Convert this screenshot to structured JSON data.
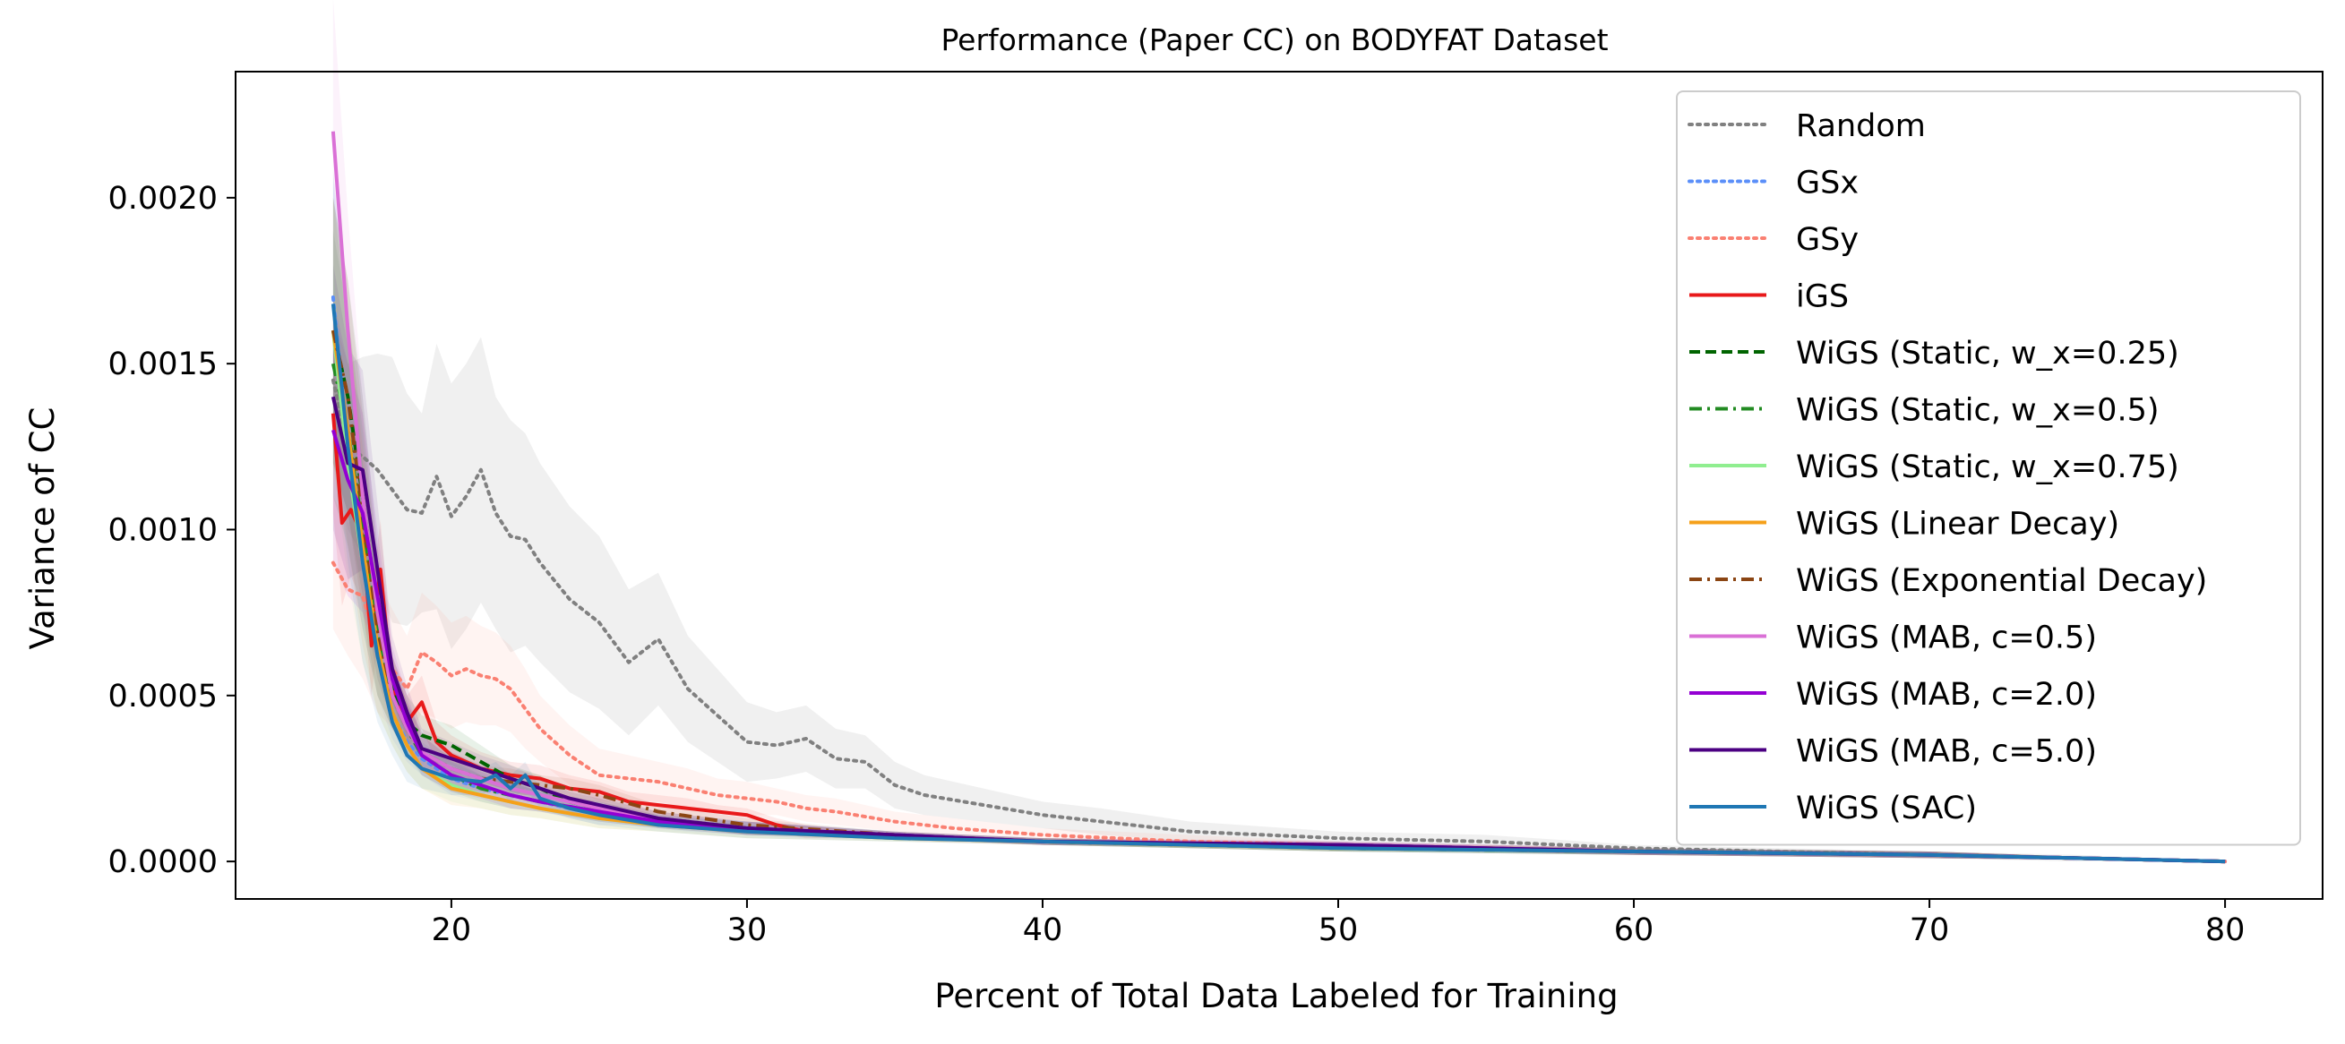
{
  "chart_data": {
    "type": "line",
    "title": "Performance (Paper CC) on BODYFAT Dataset",
    "xlabel": "Percent of Total Data Labeled for Training",
    "ylabel": "Variance of CC",
    "xlim": [
      12.7,
      83.3
    ],
    "ylim": [
      -0.000113,
      0.00238
    ],
    "xticks": [
      20,
      30,
      40,
      50,
      60,
      70,
      80
    ],
    "yticks": [
      0.0,
      0.0005,
      0.001,
      0.0015,
      0.002
    ],
    "ytick_labels": [
      "0.0000",
      "0.0005",
      "0.0010",
      "0.0015",
      "0.0020"
    ],
    "grid": false,
    "legend_position": "upper-right",
    "series": [
      {
        "name": "Random",
        "color": "#808080",
        "style": "dotted",
        "x": [
          16,
          16.5,
          17,
          17.5,
          18,
          18.5,
          19,
          19.5,
          20,
          20.5,
          21,
          21.5,
          22,
          22.5,
          23,
          24,
          25,
          26,
          27,
          28,
          29,
          30,
          31,
          32,
          33,
          34,
          35,
          36,
          38,
          40,
          42,
          45,
          50,
          55,
          60,
          65,
          70,
          75,
          80
        ],
        "y": [
          0.00145,
          0.00125,
          0.00122,
          0.00118,
          0.00112,
          0.00106,
          0.00105,
          0.00116,
          0.00104,
          0.0011,
          0.00118,
          0.00105,
          0.00098,
          0.00097,
          0.0009,
          0.00079,
          0.00072,
          0.0006,
          0.00067,
          0.00052,
          0.00044,
          0.00036,
          0.00035,
          0.00037,
          0.00031,
          0.0003,
          0.00023,
          0.0002,
          0.00017,
          0.00014,
          0.00012,
          9e-05,
          7e-05,
          6e-05,
          4e-05,
          3e-05,
          2e-05,
          1e-05,
          0.0
        ],
        "band": [
          0.0002,
          0.00025,
          0.0003,
          0.00035,
          0.0004,
          0.00035,
          0.0003,
          0.0004,
          0.0004,
          0.0004,
          0.0004,
          0.00035,
          0.00035,
          0.00032,
          0.0003,
          0.00028,
          0.00026,
          0.00022,
          0.0002,
          0.00016,
          0.00014,
          0.00012,
          0.0001,
          0.0001,
          9e-05,
          8e-05,
          7e-05,
          6e-05,
          5e-05,
          4e-05,
          4e-05,
          3e-05,
          2e-05,
          2e-05,
          1e-05,
          1e-05,
          1e-05,
          1e-05,
          0.0
        ]
      },
      {
        "name": "GSx",
        "color": "#5b8ff9",
        "style": "dotted",
        "x": [
          16,
          16.5,
          17,
          17.5,
          18,
          18.5,
          19,
          20,
          21,
          22,
          23,
          24,
          25,
          26,
          28,
          30,
          32,
          35,
          40,
          50,
          60,
          70,
          80
        ],
        "y": [
          0.0017,
          0.00125,
          0.0009,
          0.00062,
          0.00045,
          0.00036,
          0.00031,
          0.00025,
          0.00022,
          0.0002,
          0.00018,
          0.00016,
          0.00014,
          0.00013,
          0.00011,
          0.0001,
          9e-05,
          8e-05,
          6e-05,
          4e-05,
          3e-05,
          2e-05,
          0.0
        ],
        "band": [
          0.00035,
          0.0003,
          0.0002,
          0.00012,
          8e-05,
          6e-05,
          5e-05,
          5e-05,
          4e-05,
          4e-05,
          3e-05,
          3e-05,
          3e-05,
          2e-05,
          2e-05,
          2e-05,
          2e-05,
          1e-05,
          1e-05,
          1e-05,
          1e-05,
          1e-05,
          0.0
        ]
      },
      {
        "name": "GSy",
        "color": "#fa8072",
        "style": "dotted",
        "x": [
          16,
          16.5,
          17,
          17.5,
          18,
          18.5,
          19,
          19.5,
          20,
          20.5,
          21,
          21.5,
          22,
          22.5,
          23,
          24,
          25,
          26,
          27,
          28,
          29,
          30,
          31,
          32,
          33,
          35,
          37,
          40,
          45,
          50,
          60,
          70,
          80
        ],
        "y": [
          0.0009,
          0.00082,
          0.0008,
          0.00065,
          0.00058,
          0.00052,
          0.00063,
          0.0006,
          0.00056,
          0.00058,
          0.00056,
          0.00055,
          0.00052,
          0.00046,
          0.0004,
          0.00032,
          0.00026,
          0.00025,
          0.00024,
          0.00022,
          0.0002,
          0.00019,
          0.00018,
          0.00016,
          0.00015,
          0.00012,
          0.0001,
          8e-05,
          6e-05,
          5e-05,
          3e-05,
          2e-05,
          0.0
        ],
        "band": [
          0.0002,
          0.0002,
          0.00025,
          0.0002,
          0.00018,
          0.00016,
          0.00018,
          0.00017,
          0.00016,
          0.00016,
          0.00015,
          0.00014,
          0.00013,
          0.00012,
          0.0001,
          9e-05,
          8e-05,
          7e-05,
          6e-05,
          6e-05,
          5e-05,
          5e-05,
          4e-05,
          4e-05,
          4e-05,
          3e-05,
          3e-05,
          2e-05,
          2e-05,
          1e-05,
          1e-05,
          1e-05,
          0.0
        ]
      },
      {
        "name": "iGS",
        "color": "#e8191a",
        "style": "solid",
        "x": [
          16,
          16.3,
          16.6,
          17,
          17.3,
          17.6,
          18,
          18.5,
          19,
          19.5,
          20,
          21,
          22,
          23,
          24,
          25,
          26,
          27,
          28,
          29,
          30,
          31,
          32,
          34,
          36,
          40,
          45,
          50,
          60,
          70,
          80
        ],
        "y": [
          0.00135,
          0.00102,
          0.00106,
          0.00098,
          0.00065,
          0.00088,
          0.00052,
          0.00042,
          0.00048,
          0.00036,
          0.00032,
          0.00028,
          0.00026,
          0.00025,
          0.00022,
          0.00021,
          0.00018,
          0.00017,
          0.00016,
          0.00015,
          0.00014,
          0.00011,
          9e-05,
          8e-05,
          7e-05,
          6e-05,
          5e-05,
          4e-05,
          3e-05,
          2e-05,
          0.0
        ],
        "band": [
          0.0003,
          0.00025,
          0.0002,
          0.0002,
          0.00015,
          0.00015,
          0.0001,
          8e-05,
          8e-05,
          6e-05,
          6e-05,
          5e-05,
          4e-05,
          4e-05,
          4e-05,
          3e-05,
          3e-05,
          3e-05,
          3e-05,
          2e-05,
          2e-05,
          2e-05,
          2e-05,
          1e-05,
          1e-05,
          1e-05,
          1e-05,
          1e-05,
          1e-05,
          1e-05,
          0.0
        ]
      },
      {
        "name": "WiGS (Static, w_x=0.25)",
        "color": "#006400",
        "style": "dashed",
        "x": [
          16,
          16.5,
          17,
          17.5,
          18,
          18.5,
          19,
          20,
          21,
          22,
          23,
          24,
          25,
          27,
          30,
          35,
          40,
          50,
          60,
          70,
          80
        ],
        "y": [
          0.0016,
          0.0014,
          0.0011,
          0.00075,
          0.00052,
          0.00042,
          0.00038,
          0.00035,
          0.0003,
          0.00025,
          0.00022,
          0.00018,
          0.00016,
          0.00013,
          0.0001,
          8e-05,
          6e-05,
          4e-05,
          3e-05,
          2e-05,
          0.0
        ],
        "band": [
          0.0004,
          0.00035,
          0.0003,
          0.0002,
          0.0001,
          8e-05,
          6e-05,
          6e-05,
          5e-05,
          4e-05,
          4e-05,
          3e-05,
          3e-05,
          2e-05,
          2e-05,
          1e-05,
          1e-05,
          1e-05,
          1e-05,
          1e-05,
          0.0
        ]
      },
      {
        "name": "WiGS (Static, w_x=0.5)",
        "color": "#228b22",
        "style": "dashdot",
        "x": [
          16,
          16.5,
          17,
          17.5,
          18,
          18.5,
          19,
          20,
          21,
          22,
          23,
          25,
          27,
          30,
          35,
          40,
          50,
          60,
          70,
          80
        ],
        "y": [
          0.0015,
          0.0013,
          0.001,
          0.0007,
          0.0005,
          0.0004,
          0.00032,
          0.00026,
          0.00022,
          0.0002,
          0.00018,
          0.00015,
          0.00012,
          0.0001,
          8e-05,
          6e-05,
          4e-05,
          3e-05,
          2e-05,
          0.0
        ],
        "band": [
          0.0004,
          0.00035,
          0.0003,
          0.0002,
          0.0001,
          8e-05,
          6e-05,
          5e-05,
          4e-05,
          4e-05,
          3e-05,
          3e-05,
          2e-05,
          2e-05,
          1e-05,
          1e-05,
          1e-05,
          1e-05,
          1e-05,
          0.0
        ]
      },
      {
        "name": "WiGS (Static, w_x=0.75)",
        "color": "#90ee90",
        "style": "solid",
        "x": [
          16,
          16.5,
          17,
          17.5,
          18,
          18.5,
          19,
          20,
          21,
          22,
          23,
          25,
          27,
          30,
          35,
          40,
          50,
          60,
          70,
          80
        ],
        "y": [
          0.0016,
          0.0012,
          0.0009,
          0.00065,
          0.00045,
          0.00035,
          0.00028,
          0.00023,
          0.0002,
          0.00018,
          0.00016,
          0.00013,
          0.00011,
          9e-05,
          7e-05,
          6e-05,
          4e-05,
          3e-05,
          2e-05,
          0.0
        ],
        "band": [
          0.0004,
          0.00035,
          0.0003,
          0.0002,
          0.0001,
          8e-05,
          6e-05,
          5e-05,
          4e-05,
          4e-05,
          3e-05,
          3e-05,
          2e-05,
          2e-05,
          1e-05,
          1e-05,
          1e-05,
          1e-05,
          1e-05,
          0.0
        ]
      },
      {
        "name": "WiGS (Linear Decay)",
        "color": "#f5a01a",
        "style": "solid",
        "x": [
          16,
          16.5,
          17,
          17.5,
          18,
          18.5,
          19,
          20,
          21,
          22,
          23,
          25,
          27,
          30,
          35,
          40,
          50,
          55,
          60,
          70,
          80
        ],
        "y": [
          0.0016,
          0.0013,
          0.00095,
          0.00065,
          0.00045,
          0.00035,
          0.00028,
          0.00022,
          0.0002,
          0.00018,
          0.00016,
          0.00013,
          0.00011,
          9e-05,
          7e-05,
          6e-05,
          4e-05,
          4e-05,
          3e-05,
          2e-05,
          0.0
        ],
        "band": [
          0.0004,
          0.00035,
          0.0003,
          0.0002,
          0.0001,
          8e-05,
          6e-05,
          5e-05,
          4e-05,
          4e-05,
          3e-05,
          3e-05,
          2e-05,
          2e-05,
          1e-05,
          1e-05,
          1e-05,
          1e-05,
          1e-05,
          1e-05,
          0.0
        ]
      },
      {
        "name": "WiGS (Exponential Decay)",
        "color": "#8b4513",
        "style": "dashdot",
        "x": [
          16,
          16.5,
          17,
          17.5,
          18,
          18.5,
          19,
          20,
          21,
          22,
          23,
          24,
          25,
          27,
          30,
          35,
          40,
          50,
          60,
          70,
          80
        ],
        "y": [
          0.0016,
          0.0014,
          0.00105,
          0.0007,
          0.0005,
          0.0004,
          0.00033,
          0.00028,
          0.00025,
          0.00024,
          0.00023,
          0.00022,
          0.0002,
          0.00015,
          0.00011,
          8e-05,
          6e-05,
          5e-05,
          3e-05,
          2e-05,
          0.0
        ],
        "band": [
          0.0004,
          0.00035,
          0.0003,
          0.0002,
          0.0001,
          8e-05,
          6e-05,
          5e-05,
          4e-05,
          4e-05,
          3e-05,
          3e-05,
          3e-05,
          2e-05,
          2e-05,
          1e-05,
          1e-05,
          1e-05,
          1e-05,
          1e-05,
          0.0
        ]
      },
      {
        "name": "WiGS (MAB, c=0.5)",
        "color": "#da70d6",
        "style": "solid",
        "x": [
          16,
          16.5,
          17,
          17.5,
          18,
          18.5,
          19,
          20,
          21,
          22,
          23,
          25,
          27,
          30,
          35,
          40,
          50,
          60,
          70,
          80
        ],
        "y": [
          0.0022,
          0.0016,
          0.0011,
          0.00075,
          0.0005,
          0.0004,
          0.00033,
          0.00028,
          0.00025,
          0.00022,
          0.0002,
          0.00016,
          0.00013,
          0.0001,
          8e-05,
          6e-05,
          5e-05,
          3e-05,
          2e-05,
          0.0
        ],
        "band": [
          0.0004,
          0.00035,
          0.0003,
          0.0002,
          0.0001,
          8e-05,
          6e-05,
          5e-05,
          4e-05,
          4e-05,
          3e-05,
          3e-05,
          2e-05,
          2e-05,
          1e-05,
          1e-05,
          1e-05,
          1e-05,
          1e-05,
          0.0
        ]
      },
      {
        "name": "WiGS (MAB, c=2.0)",
        "color": "#9400d3",
        "style": "solid",
        "x": [
          16,
          16.5,
          17,
          17.5,
          18,
          18.5,
          19,
          20,
          21,
          22,
          23,
          25,
          27,
          30,
          35,
          40,
          50,
          60,
          70,
          80
        ],
        "y": [
          0.0013,
          0.00115,
          0.00105,
          0.0008,
          0.00055,
          0.00042,
          0.00032,
          0.00026,
          0.00023,
          0.0002,
          0.00018,
          0.00015,
          0.00012,
          0.0001,
          8e-05,
          6e-05,
          5e-05,
          3e-05,
          2e-05,
          0.0
        ],
        "band": [
          0.0004,
          0.00035,
          0.0003,
          0.0002,
          0.0001,
          8e-05,
          6e-05,
          5e-05,
          4e-05,
          4e-05,
          3e-05,
          3e-05,
          2e-05,
          2e-05,
          1e-05,
          1e-05,
          1e-05,
          1e-05,
          1e-05,
          0.0
        ]
      },
      {
        "name": "WiGS (MAB, c=5.0)",
        "color": "#4b0082",
        "style": "solid",
        "x": [
          16,
          16.5,
          17,
          17.5,
          18,
          18.5,
          19,
          20,
          21,
          22,
          23,
          24,
          25,
          27,
          30,
          35,
          40,
          50,
          60,
          70,
          80
        ],
        "y": [
          0.0014,
          0.0012,
          0.00118,
          0.00088,
          0.00058,
          0.00045,
          0.00034,
          0.00031,
          0.00028,
          0.00025,
          0.00022,
          0.00019,
          0.00017,
          0.00013,
          0.0001,
          8e-05,
          6e-05,
          5e-05,
          3e-05,
          2e-05,
          0.0
        ],
        "band": [
          0.0004,
          0.00035,
          0.0003,
          0.0002,
          0.0001,
          8e-05,
          6e-05,
          5e-05,
          4e-05,
          4e-05,
          3e-05,
          3e-05,
          3e-05,
          2e-05,
          2e-05,
          1e-05,
          1e-05,
          1e-05,
          1e-05,
          1e-05,
          0.0
        ]
      },
      {
        "name": "WiGS (SAC)",
        "color": "#1f77b4",
        "style": "solid",
        "x": [
          16,
          16.5,
          17,
          17.5,
          18,
          18.5,
          19,
          20,
          21,
          21.5,
          22,
          22.5,
          23,
          24,
          25,
          27,
          30,
          35,
          40,
          50,
          60,
          70,
          80
        ],
        "y": [
          0.00168,
          0.00125,
          0.0009,
          0.00062,
          0.00042,
          0.00032,
          0.00028,
          0.00025,
          0.00024,
          0.00026,
          0.00022,
          0.00026,
          0.00019,
          0.00016,
          0.00014,
          0.00011,
          9e-05,
          7e-05,
          6e-05,
          4e-05,
          3e-05,
          2e-05,
          0.0
        ],
        "band": [
          0.0004,
          0.00035,
          0.0003,
          0.0002,
          0.0001,
          8e-05,
          6e-05,
          5e-05,
          4e-05,
          4e-05,
          4e-05,
          4e-05,
          3e-05,
          3e-05,
          3e-05,
          2e-05,
          2e-05,
          1e-05,
          1e-05,
          1e-05,
          1e-05,
          1e-05,
          0.0
        ]
      }
    ]
  }
}
